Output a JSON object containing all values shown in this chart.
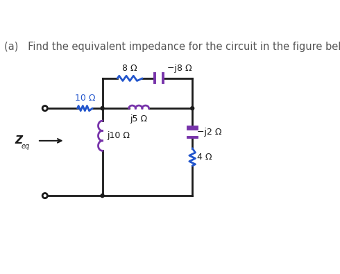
{
  "title": "(a)   Find the equivalent impedance for the circuit in the figure below.",
  "title_fontsize": 10.5,
  "bg_color": "#ffffff",
  "colors": {
    "black": "#1a1a1a",
    "blue": "#2255cc",
    "purple": "#7733aa",
    "wire": "#1a1a1a"
  },
  "labels": {
    "R10": "10 Ω",
    "R8": "8 Ω",
    "C8": "−j8 Ω",
    "L5": "j5 Ω",
    "L10": "j10 Ω",
    "C2": "−j2 Ω",
    "R4": "4 Ω",
    "Zeq": "Z"
  },
  "layout": {
    "fig_w": 4.9,
    "fig_h": 3.95,
    "dpi": 100
  }
}
